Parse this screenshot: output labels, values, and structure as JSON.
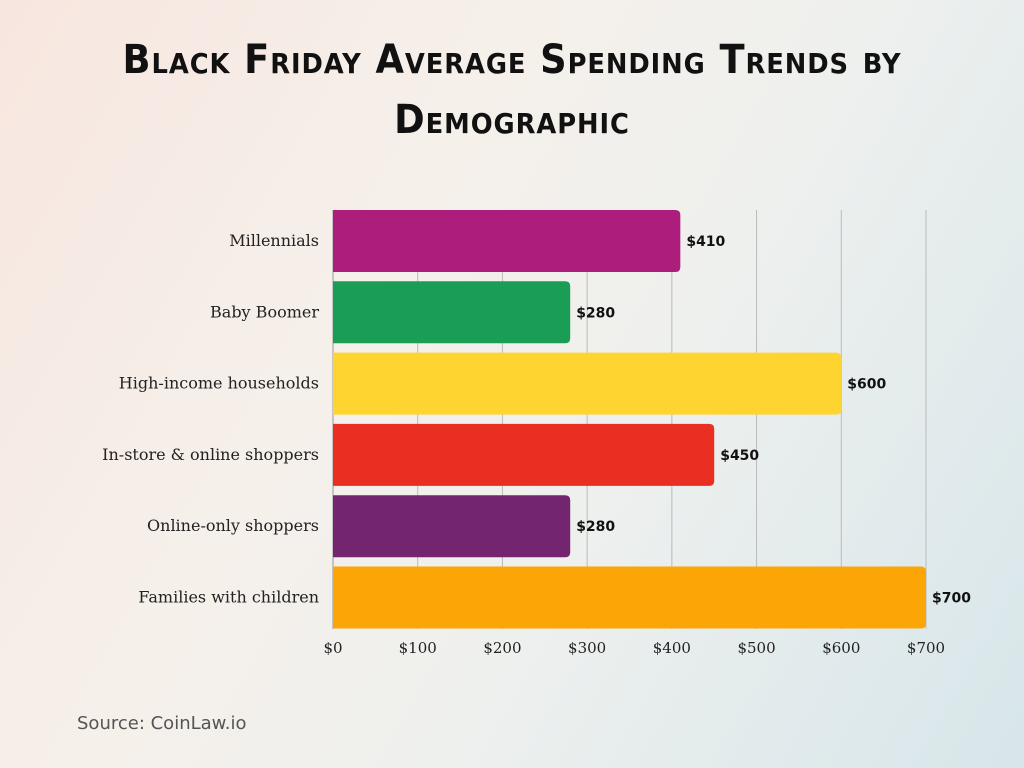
{
  "chart_data": {
    "type": "bar",
    "orientation": "horizontal",
    "title": "Black Friday Average Spending Trends by Demographic",
    "categories": [
      "Millennials",
      "Baby Boomer",
      "High-income households",
      "In-store & online shoppers",
      "Online-only shoppers",
      "Families with children"
    ],
    "values": [
      410,
      280,
      600,
      450,
      280,
      700
    ],
    "data_labels": [
      "$410",
      "$280",
      "$600",
      "$450",
      "$280",
      "$700"
    ],
    "colors": [
      "#ad1d7b",
      "#1a9d55",
      "#fed431",
      "#e92f22",
      "#74256f",
      "#fca506"
    ],
    "xlim": [
      0,
      700
    ],
    "xticks": [
      0,
      100,
      200,
      300,
      400,
      500,
      600,
      700
    ],
    "xtick_labels": [
      "$0",
      "$100",
      "$200",
      "$300",
      "$400",
      "$500",
      "$600",
      "$700"
    ],
    "grid": "vertical",
    "xlabel": "",
    "ylabel": ""
  },
  "source": "Source: CoinLaw.io"
}
